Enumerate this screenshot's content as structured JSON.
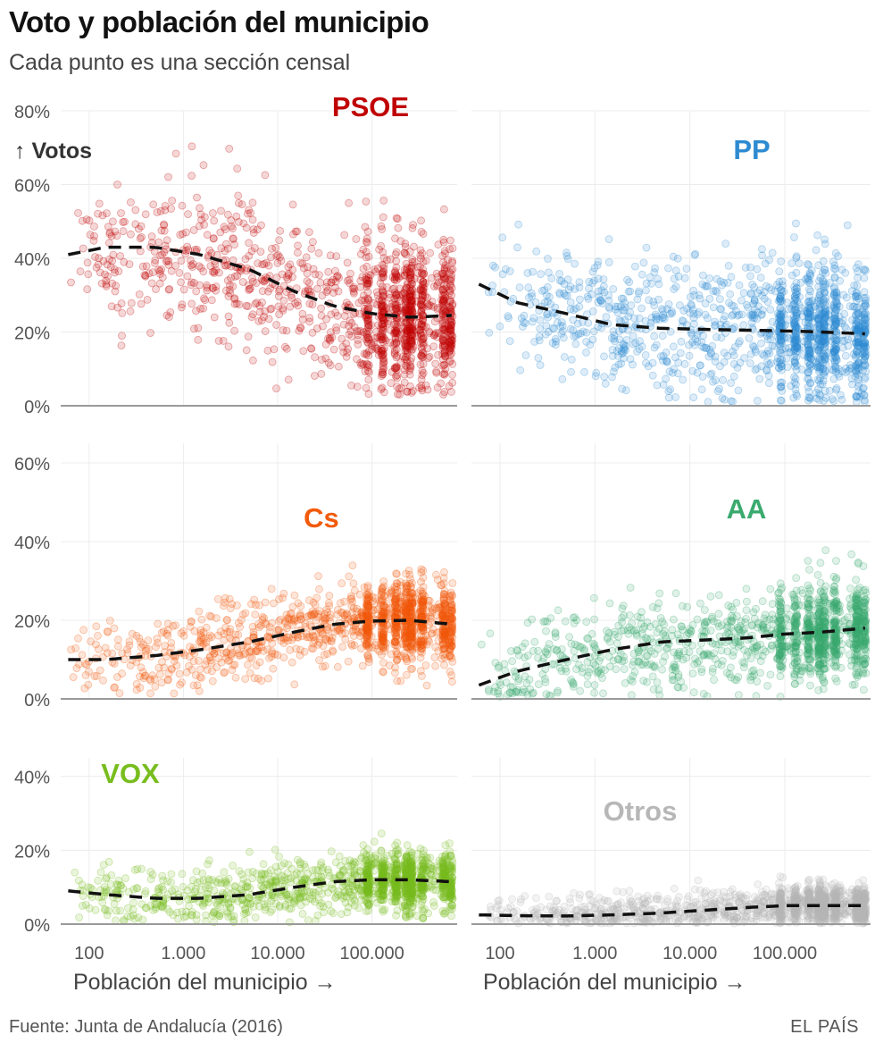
{
  "header": {
    "title": "Voto y población del municipio",
    "subtitle": "Cada punto es una sección censal"
  },
  "footer": {
    "source": "Fuente: Junta de Andalucía (2016)",
    "brand": "EL PAÍS"
  },
  "y_indicator": "↑ Votos",
  "chart_data": {
    "type": "scatter",
    "x_label": "Población del municipio →",
    "x_scale": "log",
    "x_range": [
      50,
      800000
    ],
    "x_ticks": [
      100,
      1000,
      10000,
      100000
    ],
    "x_tick_labels": [
      "100",
      "1.000",
      "10.000",
      "100.000"
    ],
    "panels": [
      {
        "name": "PSOE",
        "color": "#c00000",
        "y_range": [
          0,
          80
        ],
        "y_ticks": [
          0,
          20,
          40,
          60,
          80
        ],
        "y_tick_labels": [
          "0%",
          "20%",
          "40%",
          "60%",
          "80%"
        ],
        "trend": {
          "x": [
            60,
            150,
            500,
            1500,
            5000,
            15000,
            40000,
            100000,
            250000,
            700000
          ],
          "y": [
            41,
            43,
            43,
            41,
            37,
            31,
            27,
            25,
            24,
            24.5
          ]
        },
        "scatter_center": {
          "x": [
            60,
            150,
            500,
            1500,
            5000,
            15000,
            40000,
            100000,
            250000,
            700000
          ],
          "y": [
            41,
            43,
            43,
            41,
            37,
            31,
            27,
            25,
            24,
            24.5
          ]
        },
        "scatter_spread": 10,
        "scatter_y_range": [
          3,
          78
        ]
      },
      {
        "name": "PP",
        "color": "#2e8bd1",
        "y_range": [
          0,
          80
        ],
        "y_ticks": [
          0,
          20,
          40,
          60,
          80
        ],
        "y_tick_labels": [
          "0%",
          "20%",
          "40%",
          "60%",
          "80%"
        ],
        "trend": {
          "x": [
            60,
            150,
            500,
            1500,
            5000,
            15000,
            40000,
            100000,
            250000,
            700000
          ],
          "y": [
            33,
            28,
            25,
            22,
            21,
            20.7,
            20.5,
            20.3,
            20,
            19.5
          ]
        },
        "scatter_center": {
          "x": [
            60,
            150,
            500,
            1500,
            5000,
            15000,
            40000,
            100000,
            250000,
            700000
          ],
          "y": [
            33,
            28,
            25,
            22,
            21,
            20.7,
            20.5,
            20.3,
            20,
            19.5
          ]
        },
        "scatter_spread": 9,
        "scatter_y_range": [
          1,
          62
        ]
      },
      {
        "name": "Cs",
        "color": "#f25a0a",
        "y_range": [
          0,
          65
        ],
        "y_ticks": [
          0,
          20,
          40,
          60
        ],
        "y_tick_labels": [
          "0%",
          "20%",
          "40%",
          "60%"
        ],
        "trend": {
          "x": [
            60,
            150,
            500,
            1500,
            5000,
            15000,
            40000,
            100000,
            250000,
            700000
          ],
          "y": [
            10,
            10,
            11,
            12.5,
            14.5,
            17,
            19,
            19.8,
            20,
            19
          ]
        },
        "scatter_center": {
          "x": [
            60,
            150,
            500,
            1500,
            5000,
            15000,
            40000,
            100000,
            250000,
            700000
          ],
          "y": [
            10,
            10,
            11,
            12.5,
            14.5,
            17,
            19,
            19.8,
            20,
            19
          ]
        },
        "scatter_spread": 5,
        "scatter_y_range": [
          0.5,
          37
        ]
      },
      {
        "name": "AA",
        "color": "#3aaa6e",
        "y_range": [
          0,
          65
        ],
        "y_ticks": [
          0,
          20,
          40,
          60
        ],
        "y_tick_labels": [
          "0%",
          "20%",
          "40%",
          "60%"
        ],
        "trend": {
          "x": [
            60,
            150,
            500,
            1500,
            5000,
            15000,
            40000,
            100000,
            250000,
            700000
          ],
          "y": [
            3.5,
            7,
            10,
            12.5,
            14.5,
            15,
            15.5,
            16.5,
            17,
            18
          ]
        },
        "scatter_center": {
          "x": [
            60,
            150,
            500,
            1500,
            5000,
            15000,
            40000,
            100000,
            250000,
            700000
          ],
          "y": [
            3.5,
            7,
            10,
            12.5,
            14.5,
            15,
            15.5,
            16.5,
            17,
            18
          ]
        },
        "scatter_spread": 6,
        "scatter_y_range": [
          0.5,
          64
        ]
      },
      {
        "name": "VOX",
        "color": "#78bd1e",
        "y_range": [
          0,
          45
        ],
        "y_ticks": [
          0,
          20,
          40
        ],
        "y_tick_labels": [
          "0%",
          "20%",
          "40%"
        ],
        "trend": {
          "x": [
            60,
            150,
            500,
            1500,
            5000,
            15000,
            40000,
            100000,
            250000,
            700000
          ],
          "y": [
            9,
            8,
            7,
            7,
            8,
            10,
            11.5,
            12,
            12,
            11.5
          ]
        },
        "scatter_center": {
          "x": [
            60,
            150,
            500,
            1500,
            5000,
            15000,
            40000,
            100000,
            250000,
            700000
          ],
          "y": [
            9,
            8,
            7,
            7,
            8,
            10,
            11.5,
            12,
            12,
            11.5
          ]
        },
        "scatter_spread": 4,
        "scatter_y_range": [
          0.5,
          40
        ]
      },
      {
        "name": "Otros",
        "color": "#b7b7b7",
        "y_range": [
          0,
          45
        ],
        "y_ticks": [
          0,
          20,
          40
        ],
        "y_tick_labels": [
          "0%",
          "20%",
          "40%"
        ],
        "trend": {
          "x": [
            60,
            150,
            500,
            1500,
            5000,
            15000,
            40000,
            100000,
            250000,
            700000
          ],
          "y": [
            2.5,
            2.3,
            2.2,
            2.5,
            3,
            3.8,
            4.5,
            5,
            5,
            5
          ]
        },
        "scatter_center": {
          "x": [
            60,
            150,
            500,
            1500,
            5000,
            15000,
            40000,
            100000,
            250000,
            700000
          ],
          "y": [
            2.5,
            2.3,
            2.2,
            2.5,
            3,
            3.8,
            4.5,
            5,
            5,
            5
          ]
        },
        "scatter_spread": 2.5,
        "scatter_y_range": [
          0.2,
          41
        ]
      }
    ]
  }
}
